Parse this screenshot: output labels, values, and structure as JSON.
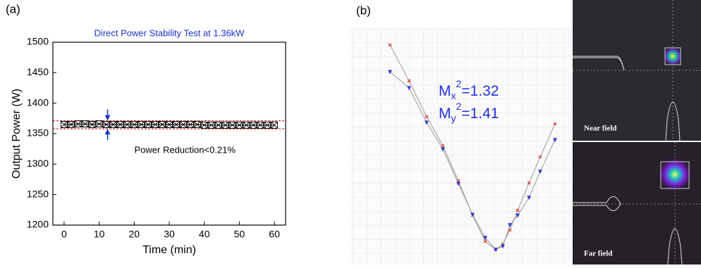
{
  "chart_data": [
    {
      "type": "line",
      "panel_label": "(a)",
      "title": "Direct Power Stability Test at 1.36kW",
      "x_label": "Time (min)",
      "y_label": "Output Power (W)",
      "annotation": "Power Reduction<0.21%",
      "x": [
        0,
        2,
        4,
        6,
        8,
        10,
        12,
        14,
        16,
        18,
        20,
        22,
        24,
        26,
        28,
        30,
        32,
        34,
        36,
        38,
        40,
        42,
        44,
        46,
        48,
        50,
        52,
        54,
        56,
        58,
        60
      ],
      "series": [
        {
          "color": "#000000",
          "values": [
            1365,
            1365,
            1366,
            1366,
            1365,
            1366,
            1365,
            1365,
            1365,
            1365,
            1365,
            1365,
            1365,
            1365,
            1365,
            1365,
            1365,
            1365,
            1365,
            1365,
            1364,
            1364,
            1364,
            1364,
            1364,
            1364,
            1364,
            1364,
            1364,
            1364,
            1364
          ]
        }
      ],
      "reference_lines": [
        1371,
        1358
      ],
      "reference_color": "#cc0000",
      "arrow_color": "#1a33cc",
      "xlim": [
        -3.2,
        63.2
      ],
      "ylim": [
        1200,
        1500
      ],
      "xticks": [
        0,
        10,
        20,
        30,
        40,
        50,
        60
      ],
      "yticks": [
        1200,
        1250,
        1300,
        1350,
        1400,
        1450,
        1500
      ]
    },
    {
      "type": "scatter",
      "panel_label": "(b)",
      "annotations": [
        {
          "base": "M",
          "sub": "x",
          "sup": "2",
          "rest": "=1.32"
        },
        {
          "base": "M",
          "sub": "y",
          "sup": "2",
          "rest": "=1.41"
        }
      ],
      "image_labels": [
        "Near field",
        "Far field"
      ],
      "x": [
        18.4,
        27.0,
        34.9,
        42.2,
        49.2,
        55.6,
        61.3,
        66.0,
        69.2,
        72.4,
        75.9,
        81.0,
        86.0,
        92.7
      ],
      "series": [
        {
          "color": "#e0332a",
          "marker": "x",
          "values": [
            92.9,
            77.7,
            62.5,
            50.3,
            35.4,
            20.8,
            9.8,
            6.3,
            8.6,
            14.6,
            22.9,
            34.5,
            45.5,
            59.5
          ]
        },
        {
          "color": "#2a3ad0",
          "marker": "triangle",
          "values": [
            81.5,
            74.7,
            60.1,
            48.8,
            34.2,
            21.1,
            11.3,
            6.3,
            7.7,
            16.7,
            20.8,
            28.3,
            39.3,
            52.7
          ]
        }
      ],
      "xlim": [
        0,
        100
      ],
      "ylim": [
        0,
        100
      ]
    }
  ]
}
